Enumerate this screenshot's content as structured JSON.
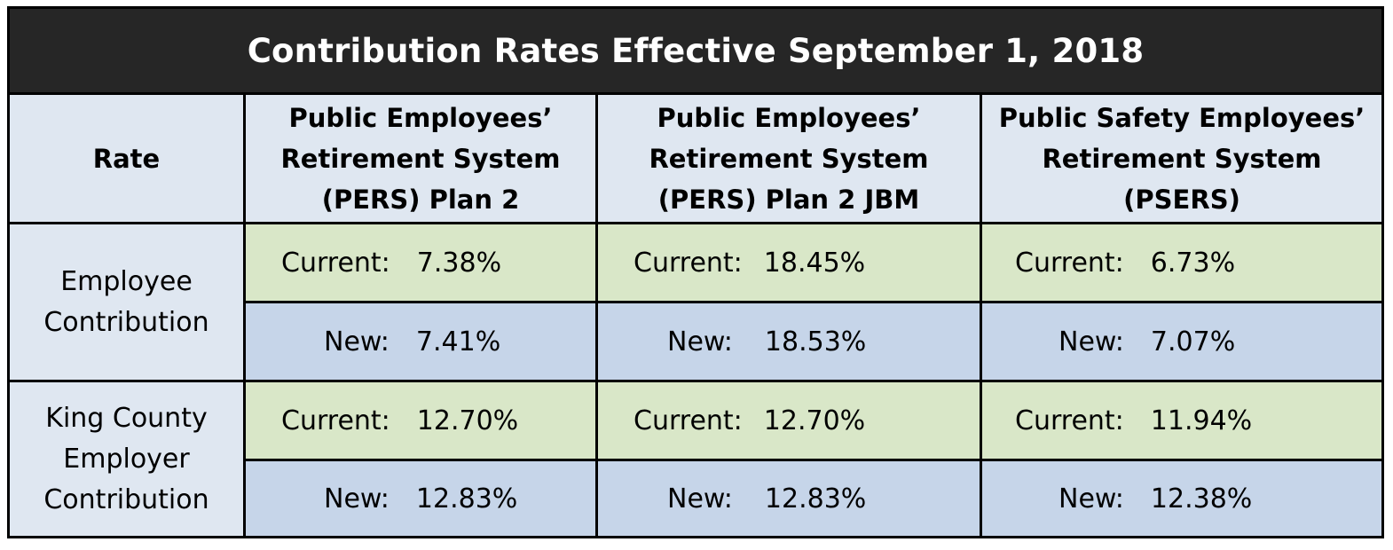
{
  "title": "Contribution Rates Effective September 1, 2018",
  "headers": {
    "rate": "Rate",
    "columns": [
      [
        "Public Employees’",
        "Retirement System",
        "(PERS) Plan 2"
      ],
      [
        "Public Employees’",
        "Retirement System",
        "(PERS) Plan 2 JBM"
      ],
      [
        "Public Safety Employees’",
        "Retirement System",
        "(PSERS)"
      ]
    ]
  },
  "labels": {
    "current": "Current:",
    "new": "New:"
  },
  "rows": [
    {
      "label": [
        "Employee",
        "Contribution"
      ],
      "current": [
        "7.38%",
        "18.45%",
        "6.73%"
      ],
      "new": [
        "7.41%",
        "18.53%",
        "7.07%"
      ]
    },
    {
      "label": [
        "King County",
        "Employer",
        "Contribution"
      ],
      "current": [
        "12.70%",
        "12.70%",
        "11.94%"
      ],
      "new": [
        "12.83%",
        "12.83%",
        "12.38%"
      ]
    }
  ]
}
